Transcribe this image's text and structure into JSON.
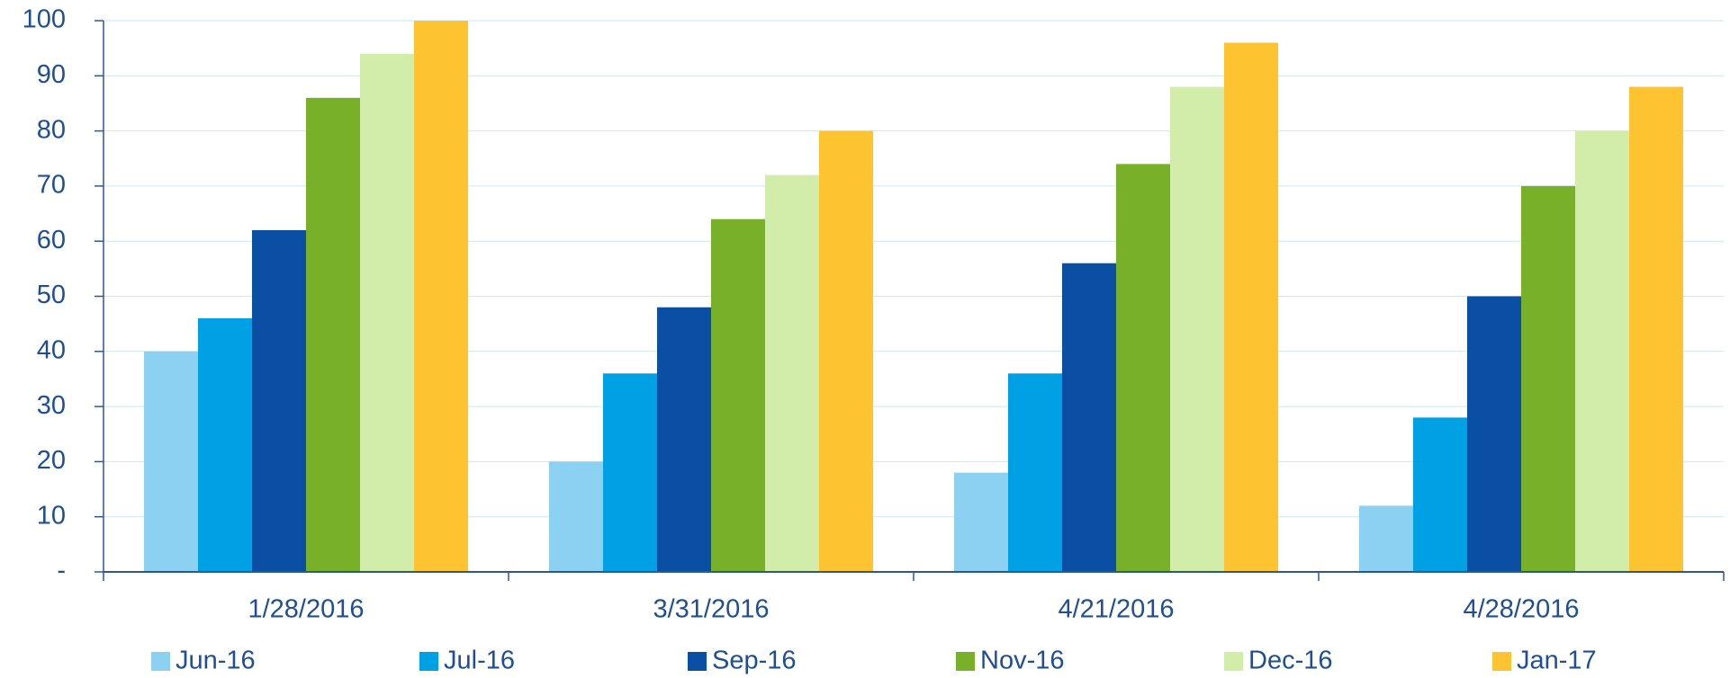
{
  "chart_data": {
    "type": "bar",
    "categories": [
      "1/28/2016",
      "3/31/2016",
      "4/21/2016",
      "4/28/2016"
    ],
    "series": [
      {
        "name": "Jun-16",
        "color": "#8dd1f2",
        "values": [
          40,
          20,
          18,
          12
        ]
      },
      {
        "name": "Jul-16",
        "color": "#00a0e4",
        "values": [
          46,
          36,
          36,
          28
        ]
      },
      {
        "name": "Sep-16",
        "color": "#0b4fa4",
        "values": [
          62,
          48,
          56,
          50
        ]
      },
      {
        "name": "Nov-16",
        "color": "#78b02a",
        "values": [
          86,
          64,
          74,
          70
        ]
      },
      {
        "name": "Dec-16",
        "color": "#d2ecaa",
        "values": [
          94,
          72,
          88,
          80
        ]
      },
      {
        "name": "Jan-17",
        "color": "#fdc330",
        "values": [
          100,
          80,
          96,
          88
        ]
      }
    ],
    "ylim": [
      0,
      100
    ],
    "yticks": [
      {
        "value": 0,
        "label": "-"
      },
      10,
      20,
      30,
      40,
      50,
      60,
      70,
      80,
      90,
      100
    ],
    "grid": true,
    "legend": "bottom"
  }
}
